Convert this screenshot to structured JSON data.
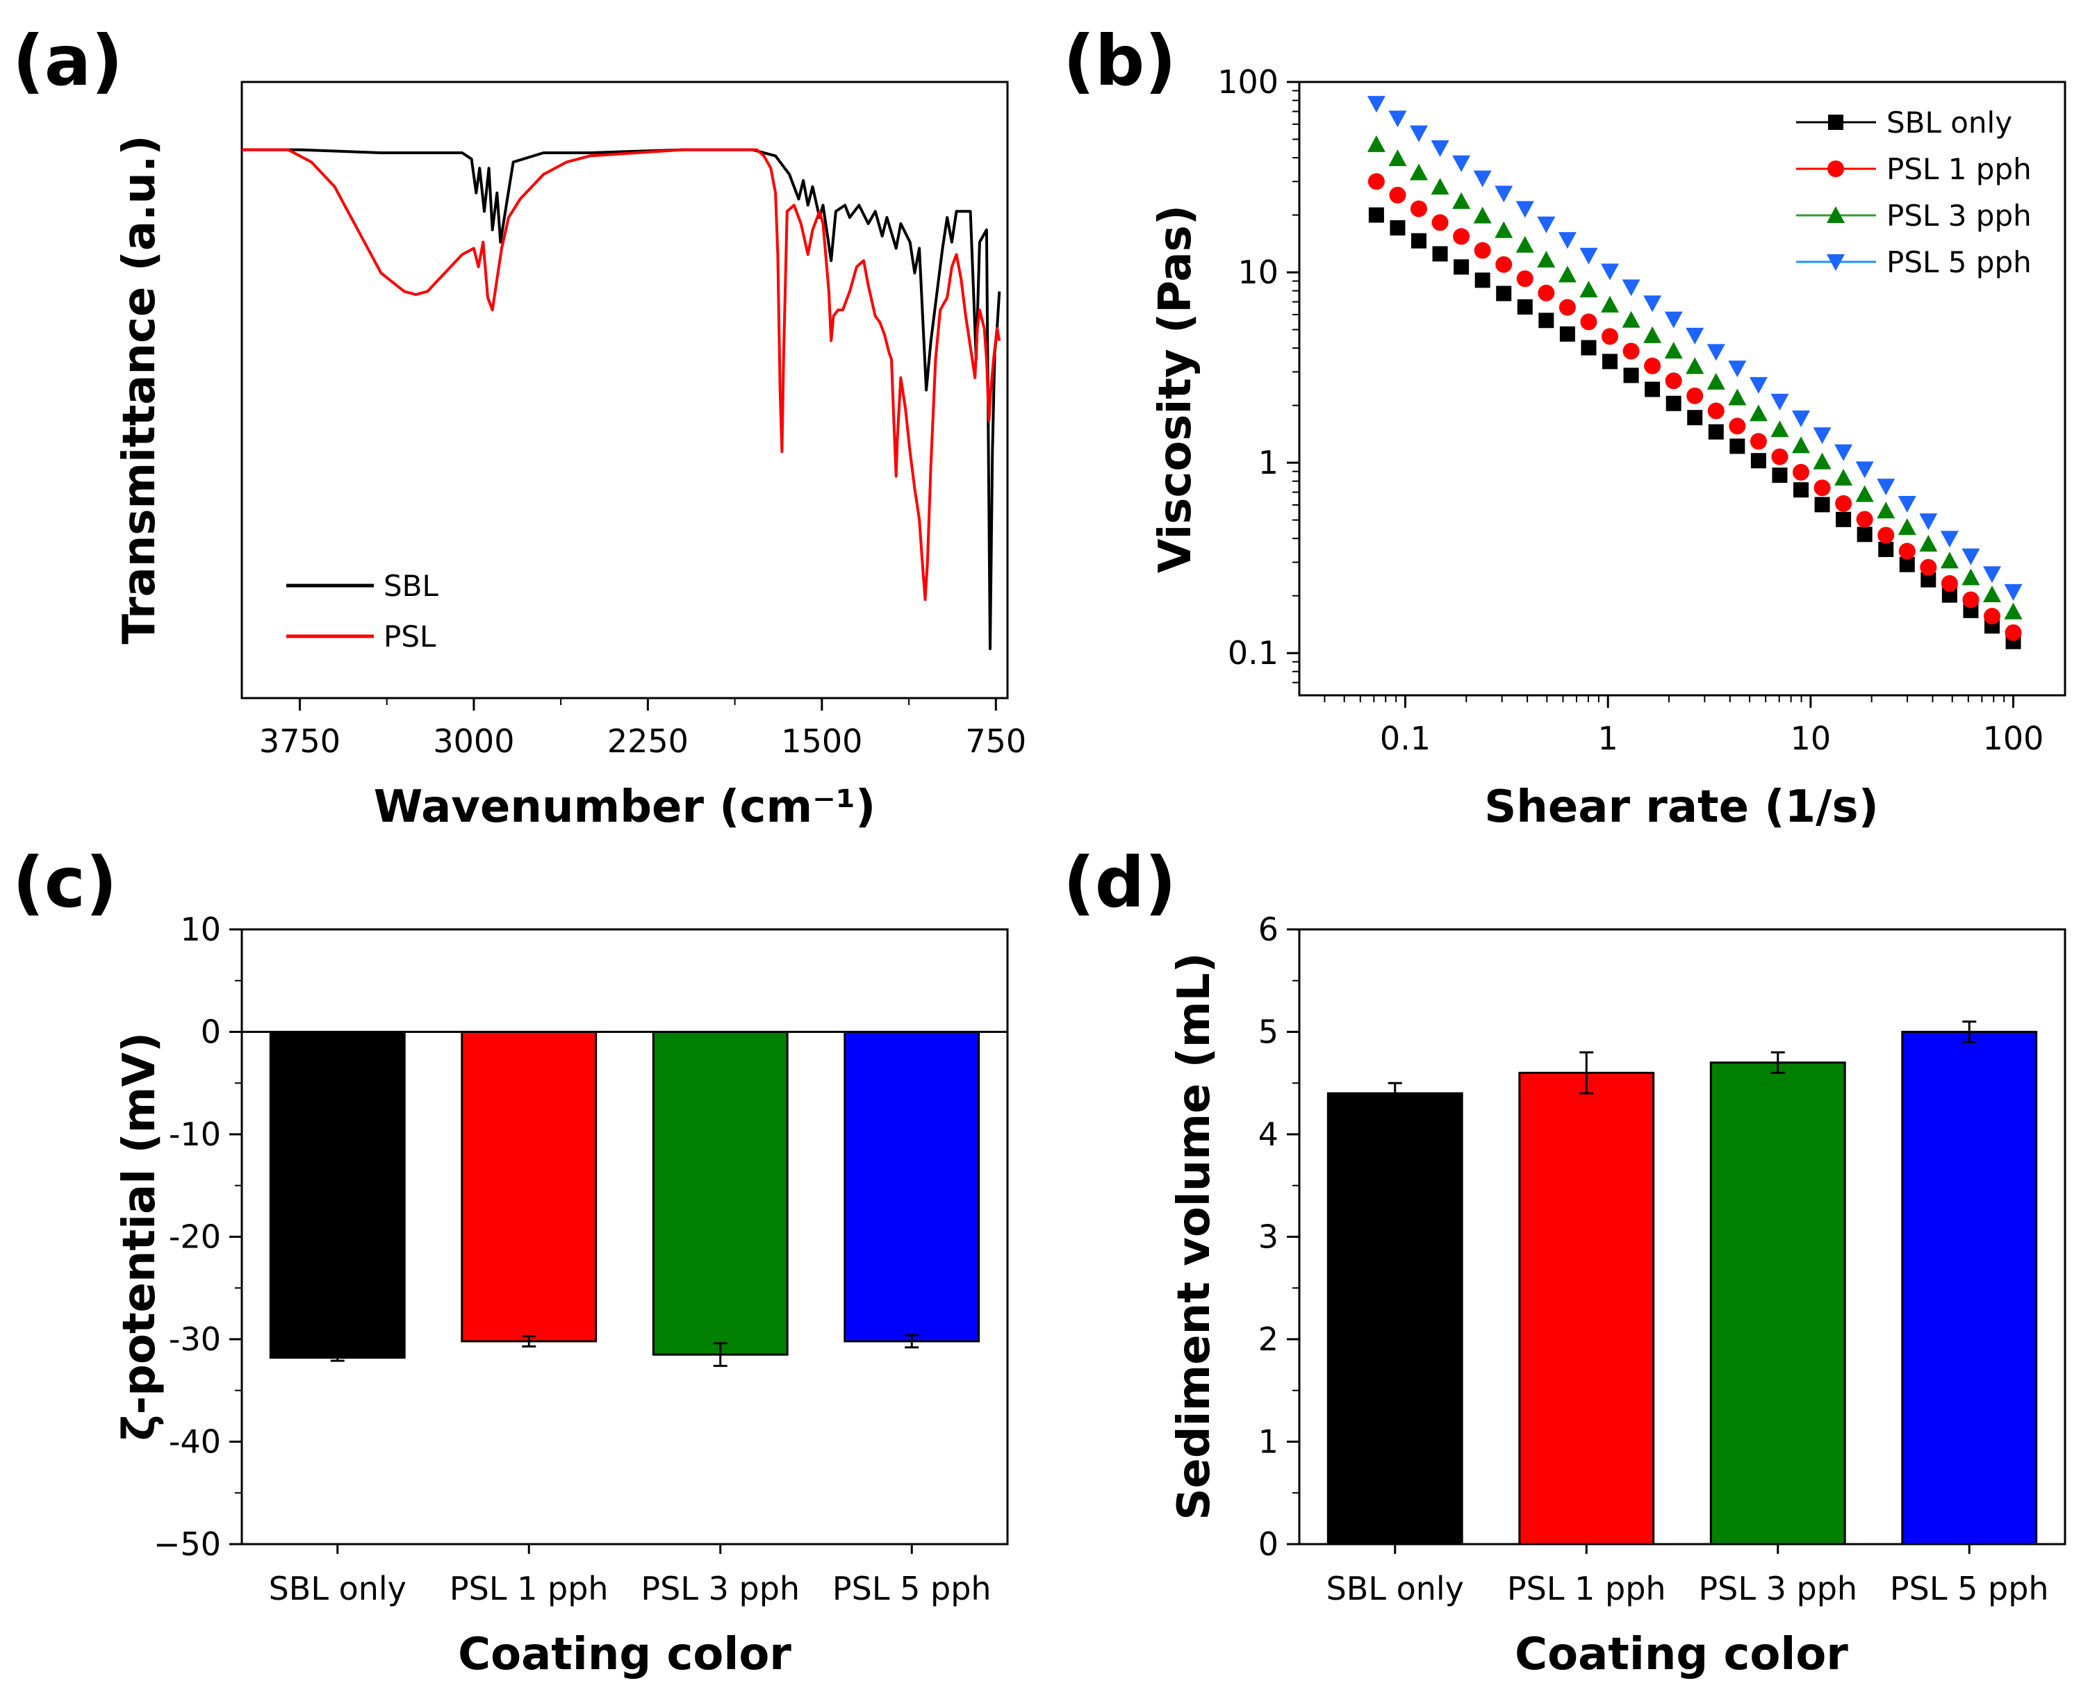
{
  "chart_data": [
    {
      "panel": "(a)",
      "type": "line",
      "title": "",
      "xlabel": "Wavenumber (cm⁻¹)",
      "ylabel": "Transmittance (a.u.)",
      "xlim": [
        4000,
        700
      ],
      "ylim": [
        0,
        1
      ],
      "x_ticks": [
        3750,
        3000,
        2250,
        1500,
        750
      ],
      "x_tick_labels": [
        "3750",
        "3000",
        "2250",
        "1500",
        "750"
      ],
      "legend": "bottom-left",
      "series": [
        {
          "name": "SBL",
          "color": "#000000",
          "points": [
            [
              4000,
              0.89
            ],
            [
              3750,
              0.89
            ],
            [
              3400,
              0.885
            ],
            [
              3200,
              0.885
            ],
            [
              3050,
              0.885
            ],
            [
              3010,
              0.875
            ],
            [
              2990,
              0.82
            ],
            [
              2975,
              0.86
            ],
            [
              2955,
              0.79
            ],
            [
              2935,
              0.86
            ],
            [
              2920,
              0.76
            ],
            [
              2900,
              0.82
            ],
            [
              2885,
              0.74
            ],
            [
              2860,
              0.8
            ],
            [
              2830,
              0.87
            ],
            [
              2700,
              0.885
            ],
            [
              2500,
              0.885
            ],
            [
              2100,
              0.89
            ],
            [
              1800,
              0.89
            ],
            [
              1700,
              0.88
            ],
            [
              1640,
              0.85
            ],
            [
              1600,
              0.81
            ],
            [
              1580,
              0.84
            ],
            [
              1560,
              0.8
            ],
            [
              1540,
              0.83
            ],
            [
              1510,
              0.78
            ],
            [
              1495,
              0.8
            ],
            [
              1460,
              0.71
            ],
            [
              1440,
              0.79
            ],
            [
              1400,
              0.8
            ],
            [
              1380,
              0.78
            ],
            [
              1340,
              0.8
            ],
            [
              1300,
              0.77
            ],
            [
              1270,
              0.79
            ],
            [
              1240,
              0.75
            ],
            [
              1220,
              0.78
            ],
            [
              1180,
              0.73
            ],
            [
              1160,
              0.77
            ],
            [
              1120,
              0.74
            ],
            [
              1100,
              0.69
            ],
            [
              1080,
              0.73
            ],
            [
              1050,
              0.5
            ],
            [
              1030,
              0.58
            ],
            [
              1000,
              0.67
            ],
            [
              980,
              0.73
            ],
            [
              960,
              0.78
            ],
            [
              940,
              0.74
            ],
            [
              920,
              0.79
            ],
            [
              860,
              0.79
            ],
            [
              835,
              0.55
            ],
            [
              820,
              0.74
            ],
            [
              790,
              0.76
            ],
            [
              775,
              0.08
            ],
            [
              765,
              0.4
            ],
            [
              755,
              0.56
            ],
            [
              745,
              0.6
            ],
            [
              735,
              0.66
            ]
          ]
        },
        {
          "name": "PSL",
          "color": "#ff0000",
          "points": [
            [
              4000,
              0.89
            ],
            [
              3900,
              0.89
            ],
            [
              3800,
              0.89
            ],
            [
              3700,
              0.87
            ],
            [
              3600,
              0.83
            ],
            [
              3500,
              0.76
            ],
            [
              3400,
              0.69
            ],
            [
              3300,
              0.66
            ],
            [
              3250,
              0.655
            ],
            [
              3200,
              0.66
            ],
            [
              3150,
              0.68
            ],
            [
              3100,
              0.7
            ],
            [
              3050,
              0.72
            ],
            [
              3000,
              0.73
            ],
            [
              2980,
              0.7
            ],
            [
              2960,
              0.74
            ],
            [
              2940,
              0.65
            ],
            [
              2920,
              0.63
            ],
            [
              2900,
              0.68
            ],
            [
              2880,
              0.73
            ],
            [
              2850,
              0.78
            ],
            [
              2800,
              0.81
            ],
            [
              2700,
              0.85
            ],
            [
              2600,
              0.87
            ],
            [
              2500,
              0.88
            ],
            [
              2300,
              0.885
            ],
            [
              2100,
              0.89
            ],
            [
              1900,
              0.89
            ],
            [
              1780,
              0.89
            ],
            [
              1750,
              0.88
            ],
            [
              1720,
              0.86
            ],
            [
              1700,
              0.82
            ],
            [
              1690,
              0.72
            ],
            [
              1680,
              0.5
            ],
            [
              1672,
              0.4
            ],
            [
              1665,
              0.55
            ],
            [
              1650,
              0.79
            ],
            [
              1620,
              0.8
            ],
            [
              1590,
              0.77
            ],
            [
              1560,
              0.72
            ],
            [
              1540,
              0.76
            ],
            [
              1510,
              0.79
            ],
            [
              1495,
              0.77
            ],
            [
              1470,
              0.66
            ],
            [
              1460,
              0.58
            ],
            [
              1450,
              0.62
            ],
            [
              1430,
              0.63
            ],
            [
              1410,
              0.63
            ],
            [
              1380,
              0.66
            ],
            [
              1350,
              0.7
            ],
            [
              1320,
              0.71
            ],
            [
              1300,
              0.67
            ],
            [
              1270,
              0.62
            ],
            [
              1250,
              0.61
            ],
            [
              1230,
              0.59
            ],
            [
              1210,
              0.56
            ],
            [
              1200,
              0.55
            ],
            [
              1190,
              0.45
            ],
            [
              1180,
              0.36
            ],
            [
              1175,
              0.42
            ],
            [
              1160,
              0.52
            ],
            [
              1140,
              0.47
            ],
            [
              1120,
              0.4
            ],
            [
              1100,
              0.34
            ],
            [
              1080,
              0.29
            ],
            [
              1065,
              0.21
            ],
            [
              1055,
              0.16
            ],
            [
              1045,
              0.22
            ],
            [
              1030,
              0.38
            ],
            [
              1010,
              0.55
            ],
            [
              990,
              0.63
            ],
            [
              960,
              0.65
            ],
            [
              940,
              0.7
            ],
            [
              920,
              0.72
            ],
            [
              900,
              0.68
            ],
            [
              880,
              0.62
            ],
            [
              860,
              0.57
            ],
            [
              840,
              0.52
            ],
            [
              830,
              0.6
            ],
            [
              820,
              0.63
            ],
            [
              800,
              0.6
            ],
            [
              790,
              0.55
            ],
            [
              780,
              0.45
            ],
            [
              772,
              0.5
            ],
            [
              760,
              0.55
            ],
            [
              745,
              0.6
            ],
            [
              735,
              0.58
            ]
          ]
        }
      ]
    },
    {
      "panel": "(b)",
      "type": "scatter",
      "title": "",
      "xlabel": "Shear rate (1/s)",
      "ylabel": "Viscosity (Pas)",
      "xscale": "log",
      "yscale": "log",
      "xlim": [
        0.03,
        180
      ],
      "ylim": [
        0.06,
        100
      ],
      "x_ticks": [
        0.1,
        1,
        10,
        100
      ],
      "x_tick_labels": [
        "0.1",
        "1",
        "10",
        "100"
      ],
      "y_ticks": [
        0.1,
        1,
        10,
        100
      ],
      "y_tick_labels": [
        "0.1",
        "1",
        "10",
        "100"
      ],
      "legend": "top-right",
      "x_range": [
        0.072,
        100
      ],
      "points_per_series": 31,
      "series": [
        {
          "name": "SBL only",
          "marker": "square",
          "color": "#000000",
          "y_start": 20,
          "y_end": 0.115
        },
        {
          "name": "PSL 1 pph",
          "marker": "circle",
          "color": "#ff0000",
          "y_start": 30,
          "y_end": 0.128
        },
        {
          "name": "PSL 3 pph",
          "marker": "triangle-up",
          "color": "#008000",
          "line_color": "#2ca02c",
          "y_start": 47,
          "y_end": 0.165
        },
        {
          "name": "PSL 5 pph",
          "marker": "triangle-down",
          "color": "#1e64ff",
          "line_color": "#1e90ff",
          "y_start": 77,
          "y_end": 0.21
        }
      ]
    },
    {
      "panel": "(c)",
      "type": "bar",
      "title": "",
      "xlabel": "Coating color",
      "ylabel": "ζ-potential (mV)",
      "ylim": [
        -50,
        10
      ],
      "y_ticks": [
        10,
        0,
        -10,
        -20,
        -30,
        -40,
        -50
      ],
      "y_tick_labels": [
        "10",
        "0",
        "-10",
        "-20",
        "-30",
        "-40",
        "−50"
      ],
      "categories": [
        "SBL only",
        "PSL 1 pph",
        "PSL 3 pph",
        "PSL 5 pph"
      ],
      "values": [
        -31.8,
        -30.2,
        -31.5,
        -30.2
      ],
      "errors": [
        0.3,
        0.5,
        1.1,
        0.6
      ],
      "colors": [
        "#000000",
        "#ff0000",
        "#008000",
        "#0000ff"
      ]
    },
    {
      "panel": "(d)",
      "type": "bar",
      "title": "",
      "xlabel": "Coating color",
      "ylabel": "Sediment volume (mL)",
      "ylim": [
        0,
        6
      ],
      "y_ticks": [
        0,
        1,
        2,
        3,
        4,
        5,
        6
      ],
      "y_tick_labels": [
        "0",
        "1",
        "2",
        "3",
        "4",
        "5",
        "6"
      ],
      "categories": [
        "SBL only",
        "PSL 1 pph",
        "PSL 3 pph",
        "PSL 5 pph"
      ],
      "values": [
        4.4,
        4.6,
        4.7,
        5.0
      ],
      "errors": [
        0.1,
        0.2,
        0.1,
        0.1
      ],
      "colors": [
        "#000000",
        "#ff0000",
        "#008000",
        "#0000ff"
      ]
    }
  ]
}
